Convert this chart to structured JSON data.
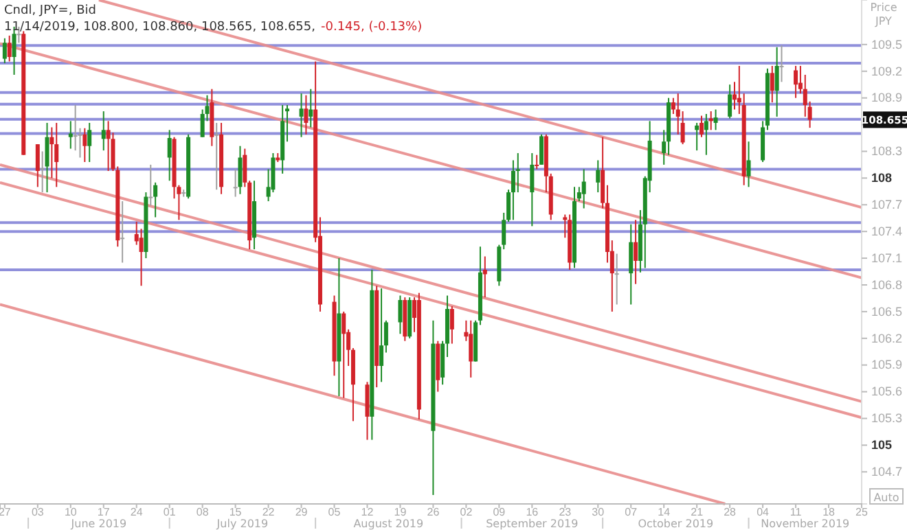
{
  "chart_data": {
    "type": "candlestick",
    "title": "Cndl, JPY=, Bid",
    "subtitle": "11/14/2019, 108.800, 108.860, 108.565, 108.655,",
    "ylabel": "Price JPY",
    "annotations": [
      "-0.145, (-0.13%)",
      "Auto",
      "108.655",
      "June 2019",
      "July 2019",
      "August 2019",
      "September 2019",
      "October 2019",
      "November 2019"
    ],
    "x": [
      "2019-05-27",
      "2019-05-28",
      "2019-05-29",
      "2019-05-30",
      "2019-05-31",
      "2019-06-03",
      "2019-06-04",
      "2019-06-05",
      "2019-06-06",
      "2019-06-07",
      "2019-06-10",
      "2019-06-11",
      "2019-06-12",
      "2019-06-13",
      "2019-06-14",
      "2019-06-17",
      "2019-06-18",
      "2019-06-19",
      "2019-06-20",
      "2019-06-21",
      "2019-06-24",
      "2019-06-25",
      "2019-06-26",
      "2019-06-27",
      "2019-06-28",
      "2019-07-01",
      "2019-07-02",
      "2019-07-03",
      "2019-07-04",
      "2019-07-05",
      "2019-07-08",
      "2019-07-09",
      "2019-07-10",
      "2019-07-11",
      "2019-07-12",
      "2019-07-15",
      "2019-07-16",
      "2019-07-17",
      "2019-07-18",
      "2019-07-19",
      "2019-07-22",
      "2019-07-23",
      "2019-07-24",
      "2019-07-25",
      "2019-07-26",
      "2019-07-29",
      "2019-07-30",
      "2019-07-31",
      "2019-08-01",
      "2019-08-02",
      "2019-08-05",
      "2019-08-06",
      "2019-08-07",
      "2019-08-08",
      "2019-08-09",
      "2019-08-12",
      "2019-08-13",
      "2019-08-14",
      "2019-08-15",
      "2019-08-16",
      "2019-08-19",
      "2019-08-20",
      "2019-08-21",
      "2019-08-22",
      "2019-08-23",
      "2019-08-26",
      "2019-08-27",
      "2019-08-28",
      "2019-08-29",
      "2019-08-30",
      "2019-09-02",
      "2019-09-03",
      "2019-09-04",
      "2019-09-05",
      "2019-09-06",
      "2019-09-09",
      "2019-09-10",
      "2019-09-11",
      "2019-09-12",
      "2019-09-13",
      "2019-09-16",
      "2019-09-17",
      "2019-09-18",
      "2019-09-19",
      "2019-09-20",
      "2019-09-23",
      "2019-09-24",
      "2019-09-25",
      "2019-09-26",
      "2019-09-27",
      "2019-09-30",
      "2019-10-01",
      "2019-10-02",
      "2019-10-03",
      "2019-10-04",
      "2019-10-07",
      "2019-10-08",
      "2019-10-09",
      "2019-10-10",
      "2019-10-11",
      "2019-10-14",
      "2019-10-15",
      "2019-10-16",
      "2019-10-17",
      "2019-10-18",
      "2019-10-21",
      "2019-10-22",
      "2019-10-23",
      "2019-10-24",
      "2019-10-25",
      "2019-10-28",
      "2019-10-29",
      "2019-10-30",
      "2019-10-31",
      "2019-11-01",
      "2019-11-04",
      "2019-11-05",
      "2019-11-06",
      "2019-11-07",
      "2019-11-08",
      "2019-11-11",
      "2019-11-12",
      "2019-11-13",
      "2019-11-14"
    ],
    "ohlc": [
      [
        109.34,
        109.57,
        109.29,
        109.52
      ],
      [
        109.52,
        109.6,
        109.31,
        109.36
      ],
      [
        109.36,
        109.7,
        109.16,
        109.62
      ],
      [
        109.62,
        109.7,
        109.52,
        109.62
      ],
      [
        109.62,
        109.65,
        108.26,
        108.26
      ],
      [
        108.38,
        108.38,
        107.9,
        108.08
      ],
      [
        108.11,
        108.3,
        107.84,
        108.11
      ],
      [
        108.13,
        108.62,
        107.84,
        108.46
      ],
      [
        108.46,
        108.57,
        108.0,
        108.38
      ],
      [
        108.38,
        108.62,
        107.9,
        108.18
      ],
      [
        108.46,
        108.64,
        108.33,
        108.5
      ],
      [
        108.48,
        108.82,
        108.31,
        108.48
      ],
      [
        108.49,
        108.56,
        108.23,
        108.49
      ],
      [
        108.49,
        108.56,
        108.18,
        108.36
      ],
      [
        108.36,
        108.62,
        108.18,
        108.54
      ],
      [
        108.44,
        108.75,
        108.31,
        108.54
      ],
      [
        108.54,
        108.64,
        108.08,
        108.44
      ],
      [
        108.44,
        108.51,
        108.08,
        108.1
      ],
      [
        108.09,
        108.13,
        107.23,
        107.3
      ],
      [
        107.33,
        107.74,
        107.05,
        107.33
      ],
      [
        107.37,
        107.51,
        107.25,
        107.29
      ],
      [
        107.33,
        107.43,
        106.79,
        107.17
      ],
      [
        107.17,
        107.84,
        107.1,
        107.79
      ],
      [
        107.79,
        108.15,
        107.69,
        107.79
      ],
      [
        107.79,
        107.95,
        107.56,
        107.92
      ],
      [
        108.23,
        108.54,
        107.97,
        108.45
      ],
      [
        108.44,
        108.46,
        107.77,
        107.9
      ],
      [
        107.9,
        107.92,
        107.53,
        107.82
      ],
      [
        107.84,
        107.87,
        107.79,
        107.84
      ],
      [
        107.79,
        108.49,
        107.77,
        108.46
      ],
      [
        108.46,
        108.77,
        108.46,
        108.72
      ],
      [
        108.72,
        108.93,
        108.64,
        108.81
      ],
      [
        108.85,
        109.0,
        108.36,
        108.46
      ],
      [
        108.49,
        108.62,
        107.87,
        108.49
      ],
      [
        108.49,
        108.62,
        107.82,
        107.9
      ],
      [
        107.9,
        108.1,
        107.79,
        107.9
      ],
      [
        107.9,
        108.36,
        107.82,
        108.23
      ],
      [
        108.26,
        108.33,
        107.9,
        107.95
      ],
      [
        107.95,
        107.97,
        107.2,
        107.3
      ],
      [
        107.33,
        107.97,
        107.2,
        107.74
      ],
      [
        107.79,
        108.1,
        107.74,
        107.9
      ],
      [
        107.87,
        108.28,
        107.84,
        108.23
      ],
      [
        108.23,
        108.28,
        108.18,
        108.2
      ],
      [
        108.2,
        108.82,
        108.05,
        108.64
      ],
      [
        108.75,
        108.82,
        108.41,
        108.78
      ],
      [
        108.69,
        108.95,
        108.46,
        108.78
      ],
      [
        108.78,
        108.93,
        108.49,
        108.62
      ],
      [
        108.69,
        109.0,
        108.57,
        108.77
      ],
      [
        108.77,
        109.31,
        107.28,
        107.33
      ],
      [
        107.35,
        107.56,
        106.5,
        106.58
      ],
      [
        106.61,
        106.68,
        105.78,
        105.94
      ],
      [
        105.94,
        107.1,
        105.55,
        106.48
      ],
      [
        106.48,
        106.5,
        105.53,
        106.25
      ],
      [
        106.27,
        106.3,
        105.89,
        106.07
      ],
      [
        106.07,
        106.09,
        105.27,
        105.68
      ],
      [
        105.68,
        105.71,
        105.06,
        105.32
      ],
      [
        105.32,
        106.97,
        105.06,
        106.74
      ],
      [
        106.74,
        106.79,
        105.65,
        105.89
      ],
      [
        105.89,
        106.76,
        105.71,
        106.12
      ],
      [
        106.12,
        106.4,
        106.04,
        106.38
      ],
      [
        106.38,
        106.68,
        106.25,
        106.63
      ],
      [
        106.63,
        106.66,
        106.17,
        106.22
      ],
      [
        106.22,
        106.66,
        106.2,
        106.63
      ],
      [
        106.63,
        106.66,
        106.27,
        106.43
      ],
      [
        106.63,
        106.71,
        105.29,
        105.4
      ],
      [
        105.16,
        106.4,
        104.44,
        106.14
      ],
      [
        106.14,
        106.17,
        105.6,
        105.73
      ],
      [
        105.76,
        106.17,
        105.68,
        106.14
      ],
      [
        106.14,
        106.68,
        105.99,
        106.53
      ],
      [
        106.53,
        106.56,
        106.14,
        106.3
      ],
      [
        106.27,
        106.4,
        106.17,
        106.22
      ],
      [
        106.25,
        106.4,
        105.76,
        105.94
      ],
      [
        105.94,
        106.4,
        105.94,
        106.38
      ],
      [
        106.4,
        107.23,
        106.35,
        106.94
      ],
      [
        106.97,
        107.12,
        106.66,
        106.92
      ],
      [
        106.84,
        107.25,
        106.79,
        107.23
      ],
      [
        107.25,
        107.61,
        107.2,
        107.53
      ],
      [
        107.53,
        107.87,
        107.51,
        107.84
      ],
      [
        107.84,
        108.2,
        107.53,
        108.08
      ],
      [
        108.08,
        108.28,
        107.84,
        108.1
      ],
      [
        107.84,
        108.28,
        107.46,
        108.15
      ],
      [
        108.15,
        108.26,
        108.1,
        108.14
      ],
      [
        108.15,
        108.49,
        108.15,
        108.47
      ],
      [
        108.47,
        108.49,
        107.84,
        108.02
      ],
      [
        108.02,
        108.05,
        107.53,
        107.59
      ],
      [
        107.56,
        107.59,
        107.33,
        107.53
      ],
      [
        107.53,
        107.59,
        106.97,
        107.05
      ],
      [
        107.05,
        107.9,
        106.99,
        107.74
      ],
      [
        107.77,
        107.9,
        107.74,
        107.84
      ],
      [
        107.82,
        108.1,
        107.66,
        107.96
      ],
      [
        107.95,
        108.2,
        107.84,
        108.09
      ],
      [
        108.09,
        108.46,
        107.66,
        107.72
      ],
      [
        107.72,
        107.92,
        107.05,
        107.17
      ],
      [
        107.18,
        107.3,
        106.5,
        106.93
      ],
      [
        106.93,
        107.15,
        106.58,
        106.93
      ],
      [
        106.93,
        107.48,
        106.58,
        107.28
      ],
      [
        107.28,
        107.53,
        106.81,
        107.07
      ],
      [
        107.07,
        107.64,
        106.94,
        107.48
      ],
      [
        107.48,
        108.02,
        106.99,
        108.0
      ],
      [
        107.97,
        108.64,
        107.84,
        108.42
      ],
      [
        108.28,
        108.54,
        108.15,
        108.41
      ],
      [
        108.41,
        108.9,
        108.26,
        108.85
      ],
      [
        108.85,
        108.9,
        108.72,
        108.77
      ],
      [
        108.77,
        108.95,
        108.49,
        108.69
      ],
      [
        108.62,
        108.75,
        108.38,
        108.4
      ],
      [
        108.54,
        108.62,
        108.31,
        108.59
      ],
      [
        108.62,
        108.7,
        108.46,
        108.49
      ],
      [
        108.54,
        108.72,
        108.26,
        108.64
      ],
      [
        108.67,
        108.75,
        108.54,
        108.64
      ],
      [
        108.62,
        108.77,
        108.54,
        108.68
      ],
      [
        108.69,
        109.05,
        108.67,
        108.94
      ],
      [
        108.94,
        109.08,
        108.77,
        108.88
      ],
      [
        108.9,
        109.26,
        108.72,
        108.85
      ],
      [
        108.82,
        108.95,
        107.92,
        108.02
      ],
      [
        108.02,
        108.41,
        107.9,
        108.2
      ],
      [
        108.2,
        108.64,
        108.18,
        108.57
      ],
      [
        108.59,
        109.23,
        108.54,
        109.18
      ],
      [
        109.18,
        109.26,
        108.85,
        108.98
      ],
      [
        108.98,
        109.47,
        108.69,
        109.26
      ],
      [
        109.26,
        109.49,
        109.08,
        109.26
      ],
      [
        109.21,
        109.26,
        108.9,
        109.05
      ],
      [
        109.07,
        109.26,
        108.95,
        109.0
      ],
      [
        109.0,
        109.16,
        108.69,
        108.82
      ],
      [
        108.8,
        108.86,
        108.565,
        108.655
      ]
    ],
    "colors": [
      "#1e8c28",
      "#d2232a",
      "#1e8c28",
      "#a0a0a0",
      "#d2232a",
      "#d2232a",
      "#a0a0a0",
      "#1e8c28",
      "#d2232a",
      "#d2232a",
      "#1e8c28",
      "#a0a0a0",
      "#a0a0a0",
      "#d2232a",
      "#1e8c28",
      "#1e8c28",
      "#d2232a",
      "#d2232a",
      "#d2232a",
      "#a0a0a0",
      "#d2232a",
      "#d2232a",
      "#1e8c28",
      "#a0a0a0",
      "#1e8c28",
      "#1e8c28",
      "#d2232a",
      "#d2232a",
      "#a0a0a0",
      "#1e8c28",
      "#1e8c28",
      "#1e8c28",
      "#d2232a",
      "#a0a0a0",
      "#d2232a",
      "#a0a0a0",
      "#1e8c28",
      "#d2232a",
      "#d2232a",
      "#1e8c28",
      "#1e8c28",
      "#1e8c28",
      "#d2232a",
      "#1e8c28",
      "#1e8c28",
      "#1e8c28",
      "#d2232a",
      "#1e8c28",
      "#d2232a",
      "#d2232a",
      "#d2232a",
      "#1e8c28",
      "#d2232a",
      "#d2232a",
      "#d2232a",
      "#d2232a",
      "#1e8c28",
      "#d2232a",
      "#1e8c28",
      "#1e8c28",
      "#1e8c28",
      "#d2232a",
      "#1e8c28",
      "#d2232a",
      "#d2232a",
      "#1e8c28",
      "#d2232a",
      "#1e8c28",
      "#1e8c28",
      "#d2232a",
      "#d2232a",
      "#d2232a",
      "#1e8c28",
      "#1e8c28",
      "#d2232a",
      "#1e8c28",
      "#1e8c28",
      "#1e8c28",
      "#1e8c28",
      "#1e8c28",
      "#1e8c28",
      "#d2232a",
      "#1e8c28",
      "#d2232a",
      "#d2232a",
      "#d2232a",
      "#d2232a",
      "#1e8c28",
      "#1e8c28",
      "#1e8c28",
      "#1e8c28",
      "#d2232a",
      "#d2232a",
      "#d2232a",
      "#a0a0a0",
      "#1e8c28",
      "#d2232a",
      "#1e8c28",
      "#1e8c28",
      "#1e8c28",
      "#1e8c28",
      "#1e8c28",
      "#d2232a",
      "#d2232a",
      "#d2232a",
      "#1e8c28",
      "#d2232a",
      "#1e8c28",
      "#d2232a",
      "#1e8c28",
      "#1e8c28",
      "#d2232a",
      "#d2232a",
      "#d2232a",
      "#1e8c28",
      "#1e8c28",
      "#1e8c28",
      "#d2232a",
      "#1e8c28",
      "#a0a0a0",
      "#d2232a",
      "#d2232a",
      "#d2232a",
      "#d2232a"
    ],
    "series": [
      {
        "type": "line",
        "color": "#e88c8c",
        "x": [
          "2019-06-16",
          "2019-11-25"
        ],
        "values": [
          110.0,
          107.67
        ]
      },
      {
        "type": "line",
        "color": "#e88c8c",
        "x": [
          "2019-05-26",
          "2019-11-25"
        ],
        "values": [
          109.51,
          106.88
        ]
      },
      {
        "type": "line",
        "color": "#e88c8c",
        "x": [
          "2019-05-26",
          "2019-11-25"
        ],
        "values": [
          108.15,
          105.49
        ]
      },
      {
        "type": "line",
        "color": "#e88c8c",
        "x": [
          "2019-05-26",
          "2019-11-25"
        ],
        "values": [
          107.95,
          105.31
        ]
      },
      {
        "type": "line",
        "color": "#e88c8c",
        "x": [
          "2019-05-26",
          "2019-10-27"
        ],
        "values": [
          106.58,
          104.34
        ]
      }
    ],
    "ref_lines": [
      {
        "axis": "y",
        "value": 109.49,
        "color": "#8484d8"
      },
      {
        "axis": "y",
        "value": 109.29,
        "color": "#8484d8"
      },
      {
        "axis": "y",
        "value": 108.96,
        "color": "#8484d8"
      },
      {
        "axis": "y",
        "value": 108.83,
        "color": "#8484d8"
      },
      {
        "axis": "y",
        "value": 108.66,
        "color": "#8484d8"
      },
      {
        "axis": "y",
        "value": 108.5,
        "color": "#8484d8"
      },
      {
        "axis": "y",
        "value": 108.1,
        "color": "#8484d8"
      },
      {
        "axis": "y",
        "value": 107.5,
        "color": "#8484d8"
      },
      {
        "axis": "y",
        "value": 107.4,
        "color": "#8484d8"
      },
      {
        "axis": "y",
        "value": 106.97,
        "color": "#8484d8"
      }
    ],
    "xlim": [
      "2019-05-26",
      "2019-11-25"
    ],
    "xticks": [
      {
        "value": "2019-05-27",
        "label": "27"
      },
      {
        "value": "2019-06-03",
        "label": "03"
      },
      {
        "value": "2019-06-10",
        "label": "10"
      },
      {
        "value": "2019-06-17",
        "label": "17"
      },
      {
        "value": "2019-06-24",
        "label": "24"
      },
      {
        "value": "2019-07-01",
        "label": "01"
      },
      {
        "value": "2019-07-08",
        "label": "08"
      },
      {
        "value": "2019-07-15",
        "label": "15"
      },
      {
        "value": "2019-07-22",
        "label": "22"
      },
      {
        "value": "2019-07-29",
        "label": "29"
      },
      {
        "value": "2019-08-05",
        "label": "05"
      },
      {
        "value": "2019-08-12",
        "label": "12"
      },
      {
        "value": "2019-08-19",
        "label": "19"
      },
      {
        "value": "2019-08-26",
        "label": "26"
      },
      {
        "value": "2019-09-02",
        "label": "02"
      },
      {
        "value": "2019-09-09",
        "label": "09"
      },
      {
        "value": "2019-09-16",
        "label": "16"
      },
      {
        "value": "2019-09-23",
        "label": "23"
      },
      {
        "value": "2019-09-30",
        "label": "30"
      },
      {
        "value": "2019-10-07",
        "label": "07"
      },
      {
        "value": "2019-10-14",
        "label": "14"
      },
      {
        "value": "2019-10-21",
        "label": "21"
      },
      {
        "value": "2019-10-28",
        "label": "28"
      },
      {
        "value": "2019-11-04",
        "label": "04"
      },
      {
        "value": "2019-11-11",
        "label": "11"
      },
      {
        "value": "2019-11-18",
        "label": "18"
      },
      {
        "value": "2019-11-25",
        "label": "25"
      }
    ],
    "ylim": [
      104.34,
      110.0
    ],
    "yticks": [
      104.7,
      105,
      105.3,
      105.6,
      105.9,
      106.2,
      106.5,
      106.8,
      107.1,
      107.4,
      107.7,
      108,
      108.3,
      {
        "value": 108.6,
        "label": null
      },
      108.9,
      109.2,
      109.5
    ]
  }
}
